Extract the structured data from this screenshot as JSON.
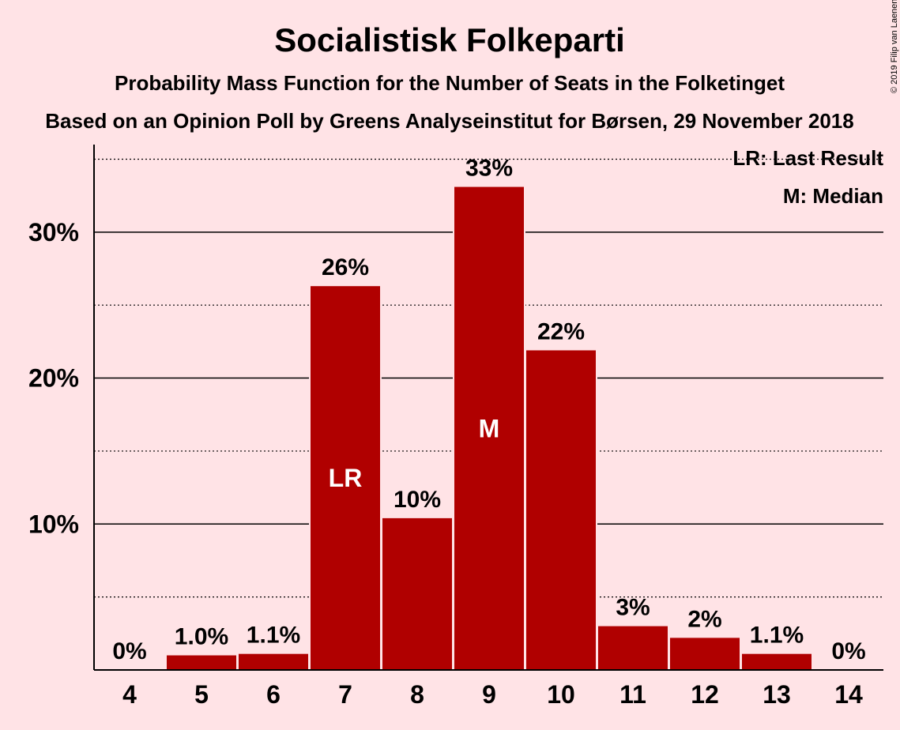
{
  "chart_data": {
    "type": "bar",
    "title": "Socialistisk Folkeparti",
    "subtitle": "Probability Mass Function for the Number of Seats in the Folketinget",
    "subtitle2": "Based on an Opinion Poll by Greens Analyseinstitut for Børsen, 29 November 2018",
    "copyright": "© 2019 Filip van Laenen",
    "categories": [
      "4",
      "5",
      "6",
      "7",
      "8",
      "9",
      "10",
      "11",
      "12",
      "13",
      "14"
    ],
    "values": [
      0,
      1.0,
      1.1,
      26.3,
      10.4,
      33.1,
      21.9,
      3.0,
      2.2,
      1.1,
      0
    ],
    "value_labels": [
      "0%",
      "1.0%",
      "1.1%",
      "26%",
      "10%",
      "33%",
      "22%",
      "3%",
      "2%",
      "1.1%",
      "0%"
    ],
    "bar_markers": {
      "7": "LR",
      "9": "M"
    },
    "legend": [
      "LR: Last Result",
      "M: Median"
    ],
    "legend_position": "top-right",
    "yticks": [
      10,
      20,
      30
    ],
    "ytick_labels": [
      "10%",
      "20%",
      "30%"
    ],
    "ylim": [
      0,
      36
    ],
    "grid": true,
    "bar_color": "#B00000",
    "background_color": "#FFE3E6"
  }
}
